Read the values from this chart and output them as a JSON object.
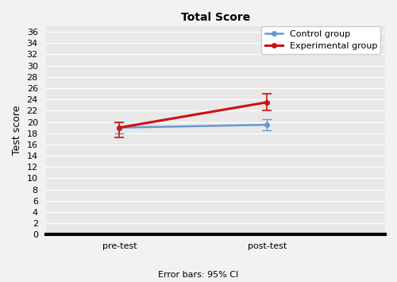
{
  "title": "Total Score",
  "ylabel": "Test score",
  "xlabel_ticks": [
    "pre-test",
    "post-test"
  ],
  "x_positions": [
    1,
    2
  ],
  "xlim": [
    0.5,
    2.8
  ],
  "ylim": [
    0,
    37
  ],
  "yticks": [
    0,
    2,
    4,
    6,
    8,
    10,
    12,
    14,
    16,
    18,
    20,
    22,
    24,
    26,
    28,
    30,
    32,
    34,
    36
  ],
  "control": {
    "means": [
      19.0,
      19.5
    ],
    "ci_lower": [
      18.0,
      18.5
    ],
    "ci_upper": [
      20.0,
      20.5
    ],
    "color": "#6699CC",
    "label": "Control group"
  },
  "experimental": {
    "means": [
      19.0,
      23.5
    ],
    "ci_lower": [
      17.3,
      22.0
    ],
    "ci_upper": [
      20.0,
      25.0
    ],
    "color": "#CC1111",
    "label": "Experimental group"
  },
  "footer_text": "Error bars: 95% CI",
  "fig_bg_color": "#F2F2F2",
  "plot_bg_color": "#E8E8E8",
  "grid_color": "#FFFFFF",
  "title_fontsize": 10,
  "label_fontsize": 9,
  "tick_fontsize": 8,
  "legend_fontsize": 8,
  "footer_fontsize": 8
}
